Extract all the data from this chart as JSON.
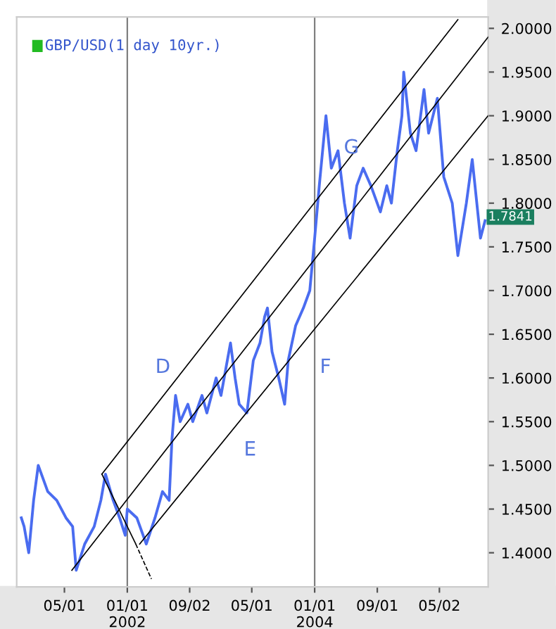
{
  "chart_data": {
    "type": "line",
    "title": "GBP/USD(1 day 10yr.)",
    "series": [
      {
        "color": "#4a6cf0",
        "x": [
          "2000-11-14",
          "2000-11-25",
          "2000-12-13",
          "2001-01-01",
          "2001-01-19",
          "2001-02-25",
          "2001-04-01",
          "2001-05-07",
          "2001-06-02",
          "2001-06-16",
          "2001-07-19",
          "2001-08-25",
          "2001-09-20",
          "2001-10-08",
          "2001-11-07",
          "2001-12-02",
          "2001-12-24",
          "2002-01-01",
          "2002-02-07",
          "2002-03-16",
          "2002-04-19",
          "2002-05-18",
          "2002-06-13",
          "2002-06-24",
          "2002-07-08",
          "2002-07-26",
          "2002-08-25",
          "2002-09-13",
          "2002-10-19",
          "2002-11-07",
          "2002-12-13",
          "2003-01-01",
          "2003-02-07",
          "2003-02-25",
          "2003-03-13",
          "2003-04-12",
          "2003-05-07",
          "2003-06-02",
          "2003-06-20",
          "2003-07-01",
          "2003-07-19",
          "2003-08-14",
          "2003-09-06",
          "2003-09-20",
          "2003-10-19",
          "2003-11-18",
          "2003-12-13",
          "2004-01-01",
          "2004-01-19",
          "2004-02-14",
          "2004-03-06",
          "2004-04-01",
          "2004-04-26",
          "2004-05-18",
          "2004-06-13",
          "2004-07-08",
          "2004-08-07",
          "2004-09-13",
          "2004-10-08",
          "2004-10-26",
          "2004-11-18",
          "2004-12-06",
          "2004-12-13",
          "2005-01-08",
          "2005-01-30",
          "2005-03-02",
          "2005-03-20",
          "2005-04-23",
          "2005-05-18",
          "2005-06-20",
          "2005-07-12",
          "2005-08-14",
          "2005-09-06",
          "2005-10-08",
          "2005-10-26"
        ],
        "values": [
          1.44,
          1.43,
          1.4,
          1.46,
          1.5,
          1.47,
          1.46,
          1.44,
          1.43,
          1.38,
          1.41,
          1.43,
          1.46,
          1.49,
          1.46,
          1.44,
          1.42,
          1.45,
          1.44,
          1.41,
          1.44,
          1.47,
          1.46,
          1.53,
          1.58,
          1.55,
          1.57,
          1.55,
          1.58,
          1.56,
          1.6,
          1.58,
          1.64,
          1.6,
          1.57,
          1.56,
          1.62,
          1.64,
          1.67,
          1.68,
          1.63,
          1.6,
          1.57,
          1.62,
          1.66,
          1.68,
          1.7,
          1.76,
          1.82,
          1.9,
          1.84,
          1.86,
          1.8,
          1.76,
          1.82,
          1.84,
          1.82,
          1.79,
          1.82,
          1.8,
          1.86,
          1.9,
          1.95,
          1.88,
          1.86,
          1.93,
          1.88,
          1.92,
          1.83,
          1.8,
          1.74,
          1.8,
          1.85,
          1.76,
          1.78
        ]
      },
      {
        "color": "#000000",
        "x": [
          "2001-09-24",
          "2005-07-12"
        ],
        "values": [
          1.49,
          2.01
        ]
      },
      {
        "color": "#000000",
        "x": [
          "2001-05-30",
          "2005-11-07"
        ],
        "values": [
          1.38,
          1.99
        ]
      },
      {
        "color": "#000000",
        "x": [
          "2002-02-18",
          "2005-11-07"
        ],
        "values": [
          1.41,
          1.9
        ]
      },
      {
        "color": "#000000",
        "x": [
          "2001-09-24",
          "2002-02-03"
        ],
        "values": [
          1.49,
          1.41
        ]
      },
      {
        "color": "#000000",
        "x": [
          "2002-02-03",
          "2002-04-05"
        ],
        "values": [
          1.41,
          1.37
        ],
        "line_style": "dashed"
      }
    ],
    "ref_lines": [
      {
        "axis": "x",
        "value": "2002-01-01",
        "color": "#808080"
      },
      {
        "axis": "x",
        "value": "2004-01-01",
        "color": "#808080"
      }
    ],
    "annotations": [
      "D",
      "E",
      "F",
      "G",
      {
        "text": "1.7841",
        "x": "2005-10-26",
        "y": 1.7841
      }
    ],
    "xlim": [
      "2000-10-27",
      "2005-11-07"
    ],
    "ylim": [
      1.361,
      2.013
    ],
    "xticks": [
      {
        "value": "2001-05-01",
        "label": "05/01"
      },
      {
        "value": "2002-01-01",
        "label": "01/01\n2002"
      },
      {
        "value": "2002-09-01",
        "label": "09/02"
      },
      {
        "value": "2003-05-01",
        "label": "05/01"
      },
      {
        "value": "2004-01-01",
        "label": "01/01\n2004"
      },
      {
        "value": "2004-09-01",
        "label": "09/01"
      },
      {
        "value": "2005-05-01",
        "label": "05/02"
      }
    ],
    "yticks": [
      {
        "value": 1.4,
        "label": "1.4000"
      },
      {
        "value": 1.45,
        "label": "1.4500"
      },
      {
        "value": 1.5,
        "label": "1.5000"
      },
      {
        "value": 1.55,
        "label": "1.5500"
      },
      {
        "value": 1.6,
        "label": "1.6000"
      },
      {
        "value": 1.65,
        "label": "1.6500"
      },
      {
        "value": 1.7,
        "label": "1.7000"
      },
      {
        "value": 1.75,
        "label": "1.7500"
      },
      {
        "value": 1.8,
        "label": "1.8000"
      },
      {
        "value": 1.85,
        "label": "1.8500"
      },
      {
        "value": 1.9,
        "label": "1.9000"
      },
      {
        "value": 1.95,
        "label": "1.9500"
      },
      {
        "value": 2.0,
        "label": "2.0000"
      }
    ],
    "grid": false,
    "legend": false
  }
}
